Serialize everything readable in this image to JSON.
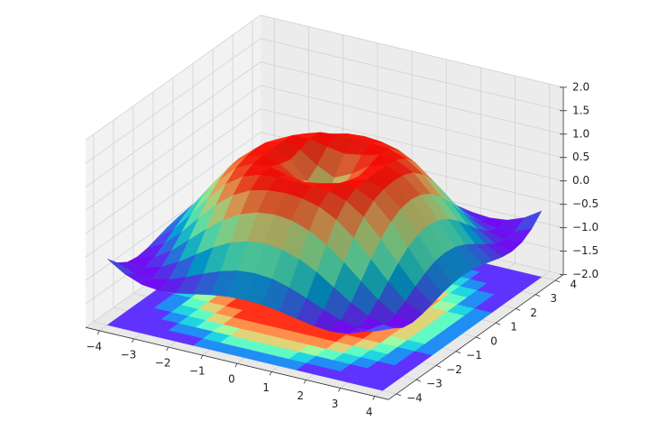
{
  "chart_data": {
    "type": "surface3d",
    "colormap": "rainbow",
    "contour": true,
    "grid": true,
    "x": [
      -4,
      -3.5,
      -3,
      -2.5,
      -2,
      -1.5,
      -1,
      -0.5,
      0,
      0.5,
      1,
      1.5,
      2,
      2.5,
      3,
      3.5,
      4
    ],
    "y": [
      -4,
      -3.5,
      -3,
      -2.5,
      -2,
      -1.5,
      -1,
      -0.5,
      0,
      0.5,
      1,
      1.5,
      2,
      2.5,
      3,
      3.5,
      4
    ],
    "z": [
      [
        -0.59,
        -0.82,
        -0.96,
        -1,
        -0.97,
        -0.9,
        -0.83,
        -0.78,
        -0.76,
        -0.78,
        -0.83,
        -0.9,
        -0.97,
        -1,
        -0.96,
        -0.82,
        -0.59
      ],
      [
        -0.82,
        -0.97,
        -0.99,
        -0.92,
        -0.78,
        -0.62,
        -0.48,
        -0.38,
        -0.35,
        -0.38,
        -0.48,
        -0.62,
        -0.78,
        -0.92,
        -0.99,
        -0.97,
        -0.82
      ],
      [
        -0.96,
        -0.99,
        -0.89,
        -0.69,
        -0.45,
        -0.21,
        -0.02,
        0.1,
        0.14,
        0.1,
        -0.02,
        -0.21,
        -0.45,
        -0.69,
        -0.89,
        -0.99,
        -0.96
      ],
      [
        -1,
        -0.92,
        -0.69,
        -0.38,
        -0.06,
        0.22,
        0.43,
        0.56,
        0.6,
        0.56,
        0.43,
        0.22,
        -0.06,
        -0.38,
        -0.69,
        -0.92,
        -1
      ],
      [
        -0.97,
        -0.78,
        -0.45,
        -0.06,
        0.31,
        0.6,
        0.79,
        0.88,
        0.91,
        0.88,
        0.79,
        0.6,
        0.31,
        -0.06,
        -0.45,
        -0.78,
        -0.97
      ],
      [
        -0.9,
        -0.62,
        -0.21,
        0.22,
        0.6,
        0.85,
        0.97,
        1,
        1,
        1,
        0.97,
        0.85,
        0.6,
        0.22,
        -0.21,
        -0.62,
        -0.9
      ],
      [
        -0.83,
        -0.48,
        -0.02,
        0.43,
        0.79,
        0.97,
        0.99,
        0.9,
        0.84,
        0.9,
        0.99,
        0.97,
        0.79,
        0.43,
        -0.02,
        -0.48,
        -0.83
      ],
      [
        -0.78,
        -0.38,
        0.1,
        0.56,
        0.88,
        1,
        0.9,
        0.65,
        0.48,
        0.65,
        0.9,
        1,
        0.88,
        0.56,
        0.1,
        -0.38,
        -0.78
      ],
      [
        -0.76,
        -0.35,
        0.14,
        0.6,
        0.91,
        1,
        0.84,
        0.48,
        0,
        0.48,
        0.84,
        1,
        0.91,
        0.6,
        0.14,
        -0.35,
        -0.76
      ],
      [
        -0.78,
        -0.38,
        0.1,
        0.56,
        0.88,
        1,
        0.9,
        0.65,
        0.48,
        0.65,
        0.9,
        1,
        0.88,
        0.56,
        0.1,
        -0.38,
        -0.78
      ],
      [
        -0.83,
        -0.48,
        -0.02,
        0.43,
        0.79,
        0.97,
        0.99,
        0.9,
        0.84,
        0.9,
        0.99,
        0.97,
        0.79,
        0.43,
        -0.02,
        -0.48,
        -0.83
      ],
      [
        -0.9,
        -0.62,
        -0.21,
        0.22,
        0.6,
        0.85,
        0.97,
        1,
        1,
        1,
        0.97,
        0.85,
        0.6,
        0.22,
        -0.21,
        -0.62,
        -0.9
      ],
      [
        -0.97,
        -0.78,
        -0.45,
        -0.06,
        0.31,
        0.6,
        0.79,
        0.88,
        0.91,
        0.88,
        0.79,
        0.6,
        0.31,
        -0.06,
        -0.45,
        -0.78,
        -0.97
      ],
      [
        -1,
        -0.92,
        -0.69,
        -0.38,
        -0.06,
        0.22,
        0.43,
        0.56,
        0.6,
        0.56,
        0.43,
        0.22,
        -0.06,
        -0.38,
        -0.69,
        -0.92,
        -1
      ],
      [
        -0.96,
        -0.99,
        -0.89,
        -0.69,
        -0.45,
        -0.21,
        -0.02,
        0.1,
        0.14,
        0.1,
        -0.02,
        -0.21,
        -0.45,
        -0.69,
        -0.89,
        -0.99,
        -0.96
      ],
      [
        -0.82,
        -0.97,
        -0.99,
        -0.92,
        -0.78,
        -0.62,
        -0.48,
        -0.38,
        -0.35,
        -0.38,
        -0.48,
        -0.62,
        -0.78,
        -0.92,
        -0.99,
        -0.97,
        -0.82
      ],
      [
        -0.59,
        -0.82,
        -0.96,
        -1,
        -0.97,
        -0.9,
        -0.83,
        -0.78,
        -0.76,
        -0.78,
        -0.83,
        -0.9,
        -0.97,
        -1,
        -0.96,
        -0.82,
        -0.59
      ]
    ],
    "xlim": [
      -4.4,
      4.4
    ],
    "ylim": [
      -4.4,
      4.4
    ],
    "zlim": [
      -2,
      2
    ],
    "xticks": [
      {
        "value": -4,
        "label": "−4"
      },
      {
        "value": -3,
        "label": "−3"
      },
      {
        "value": -2,
        "label": "−2"
      },
      {
        "value": -1,
        "label": "−1"
      },
      0,
      1,
      2,
      3,
      4
    ],
    "yticks": [
      {
        "value": -4,
        "label": "−4"
      },
      {
        "value": -3,
        "label": "−3"
      },
      {
        "value": -2,
        "label": "−2"
      },
      {
        "value": -1,
        "label": "−1"
      },
      0,
      1,
      2,
      3,
      4
    ],
    "zticks": [
      {
        "value": -2,
        "label": "−2.0"
      },
      {
        "value": -1.5,
        "label": "−1.5"
      },
      {
        "value": -1,
        "label": "−1.0"
      },
      {
        "value": -0.5,
        "label": "−0.5"
      },
      {
        "value": 0,
        "label": "0.0"
      },
      {
        "value": 0.5,
        "label": "0.5"
      },
      {
        "value": 1,
        "label": "1.0"
      },
      {
        "value": 1.5,
        "label": "1.5"
      },
      {
        "value": 2,
        "label": "2.0"
      }
    ]
  }
}
